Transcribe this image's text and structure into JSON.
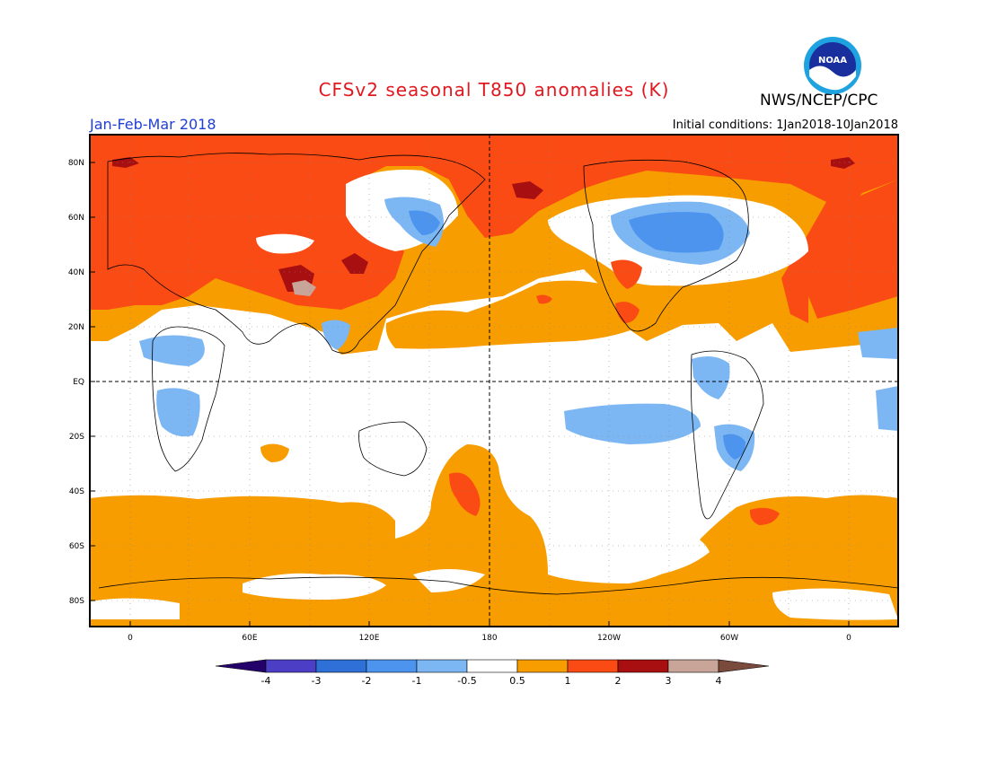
{
  "header": {
    "title": "CFSv2 seasonal T850 anomalies (K)",
    "org": "NWS/NCEP/CPC",
    "season": "Jan-Feb-Mar 2018",
    "initial_conditions": "Initial conditions: 1Jan2018-10Jan2018",
    "logo_text": "NOAA"
  },
  "colors": {
    "title": "#e0181f",
    "season": "#1f3fd6",
    "lt_m4": "#24006b",
    "m4_m3": "#4c3fc6",
    "m3_m2": "#2f6fd8",
    "m2_m1": "#4c94ee",
    "m1_m05": "#7cb7f4",
    "neutral": "#ffffff",
    "p05_p1": "#f79d00",
    "p1_p2": "#fa4b14",
    "p2_p3": "#a80f10",
    "p3_p4": "#c8a598",
    "gt_p4": "#7a4a3c"
  },
  "map": {
    "lat_labels": [
      "80N",
      "60N",
      "40N",
      "20N",
      "EQ",
      "20S",
      "40S",
      "60S",
      "80S"
    ],
    "lon_labels": [
      "0",
      "60E",
      "120E",
      "180",
      "120W",
      "60W",
      "0"
    ]
  },
  "colorbar": {
    "labels": [
      "-4",
      "-3",
      "-2",
      "-1",
      "-0.5",
      "0.5",
      "1",
      "2",
      "3",
      "4"
    ]
  }
}
